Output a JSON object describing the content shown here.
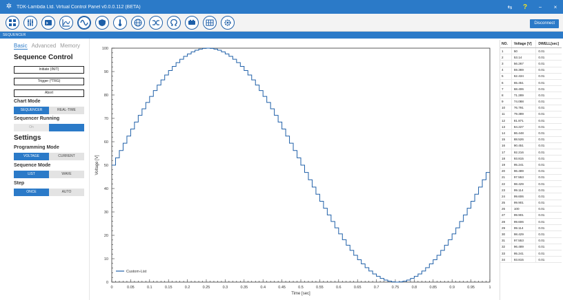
{
  "window": {
    "title": "TDK-Lambda Ltd. Virtual Control Panel v0.0.0.112 (BETA)",
    "controls": [
      "⇆",
      "?",
      "−",
      "×"
    ]
  },
  "toolbar": {
    "icons": [
      "dashboard-icon",
      "equalizer-icon",
      "terminal-icon",
      "chart-icon",
      "sine-wave-icon",
      "shield-icon",
      "thermometer-icon",
      "globe-icon",
      "shuffle-icon",
      "omega-icon",
      "battery-icon",
      "grid-icon",
      "settings-icon"
    ],
    "active_index": 4,
    "disconnect_label": "Disconnect"
  },
  "section": {
    "label": "SEQUENCER"
  },
  "left": {
    "tabs": [
      {
        "label": "Basic",
        "selected": true
      },
      {
        "label": "Advanced"
      },
      {
        "label": "Memory"
      }
    ],
    "sequence_control_title": "Sequence Control",
    "buttons": {
      "initiate": "Initiate (INIT)",
      "trigger": "Trigger (*TRG)",
      "abort": "Abort"
    },
    "chart_mode": {
      "title": "Chart Mode",
      "options": [
        "SEQUENCER",
        "REAL-TIME"
      ],
      "selected": "SEQUENCER"
    },
    "sequencer_running": {
      "title": "Sequencer Running",
      "options": [
        "On",
        "Off"
      ],
      "selected": "Off"
    },
    "settings_title": "Settings",
    "programming_mode": {
      "title": "Programming Mode",
      "options": [
        "VOLTAGE",
        "CURRENT"
      ],
      "selected": "VOLTAGE"
    },
    "sequence_mode": {
      "title": "Sequence Mode",
      "options": [
        "LIST",
        "WAVE"
      ],
      "selected": "LIST"
    },
    "step": {
      "title": "Step",
      "options": [
        "ONCE",
        "AUTO"
      ],
      "selected": "ONCE"
    }
  },
  "colors": {
    "accent": "#2b7ac8",
    "line": "#1e5fa8"
  },
  "chart_data": {
    "type": "line",
    "step": true,
    "xlabel": "Time [sec]",
    "ylabel": "Voltage [V]",
    "xlim": [
      0,
      1
    ],
    "ylim": [
      0,
      100
    ],
    "xticks": [
      "0",
      "0.05",
      "0.1",
      "0.15",
      "0.2",
      "0.25",
      "0.3",
      "0.35",
      "0.4",
      "0.45",
      "0.5",
      "0.55",
      "0.6",
      "0.65",
      "0.7",
      "0.75",
      "0.8",
      "0.85",
      "0.9",
      "0.95",
      "1"
    ],
    "yticks": [
      "0",
      "10",
      "20",
      "30",
      "40",
      "50",
      "60",
      "70",
      "80",
      "90",
      "100"
    ],
    "legend": {
      "position": "bottom-left"
    },
    "series": [
      {
        "name": "Custom-List",
        "x": [
          0,
          0.01,
          0.02,
          0.03,
          0.04,
          0.05,
          0.06,
          0.07,
          0.08,
          0.09,
          0.1,
          0.11,
          0.12,
          0.13,
          0.14,
          0.15,
          0.16,
          0.17,
          0.18,
          0.19,
          0.2,
          0.21,
          0.22,
          0.23,
          0.24,
          0.25,
          0.26,
          0.27,
          0.28,
          0.29,
          0.3,
          0.31,
          0.32,
          0.33,
          0.34,
          0.35,
          0.36,
          0.37,
          0.38,
          0.39,
          0.4,
          0.41,
          0.42,
          0.43,
          0.44,
          0.45,
          0.46,
          0.47,
          0.48,
          0.49,
          0.5,
          0.51,
          0.52,
          0.53,
          0.54,
          0.55,
          0.56,
          0.57,
          0.58,
          0.59,
          0.6,
          0.61,
          0.62,
          0.63,
          0.64,
          0.65,
          0.66,
          0.67,
          0.68,
          0.69,
          0.7,
          0.71,
          0.72,
          0.73,
          0.74,
          0.75,
          0.76,
          0.77,
          0.78,
          0.79,
          0.8,
          0.81,
          0.82,
          0.83,
          0.84,
          0.85,
          0.86,
          0.87,
          0.88,
          0.89,
          0.9,
          0.91,
          0.92,
          0.93,
          0.94,
          0.95,
          0.96,
          0.97,
          0.98,
          0.99
        ],
        "values": [
          50,
          53.14,
          56.267,
          59.369,
          62.434,
          65.451,
          68.406,
          71.289,
          74.088,
          76.791,
          79.389,
          81.871,
          84.227,
          86.448,
          88.526,
          90.451,
          92.216,
          93.815,
          95.241,
          96.489,
          97.553,
          98.429,
          99.114,
          99.606,
          99.901,
          100,
          99.901,
          99.606,
          99.114,
          98.429,
          97.553,
          96.489,
          95.241,
          93.815,
          92.216,
          90.451,
          88.526,
          86.448,
          84.227,
          81.871,
          79.389,
          76.791,
          74.088,
          71.289,
          68.406,
          65.451,
          62.434,
          59.369,
          56.267,
          53.14,
          50,
          46.86,
          43.733,
          40.631,
          37.566,
          34.549,
          31.594,
          28.711,
          25.912,
          23.209,
          20.611,
          18.129,
          15.773,
          13.552,
          11.474,
          9.549,
          7.784,
          6.185,
          4.759,
          3.511,
          2.447,
          1.571,
          0.886,
          0.394,
          0.099,
          0,
          0.099,
          0.394,
          0.886,
          1.571,
          2.447,
          3.511,
          4.759,
          6.185,
          7.784,
          9.549,
          11.474,
          13.552,
          15.773,
          18.129,
          20.611,
          23.209,
          25.912,
          28.711,
          31.594,
          34.549,
          37.566,
          40.631,
          43.733,
          46.86
        ]
      }
    ]
  },
  "table": {
    "headers": [
      "NO.",
      "Voltage [V]",
      "DWELL[sec]"
    ],
    "rows": [
      [
        "1",
        "50",
        "0.01"
      ],
      [
        "2",
        "53.14",
        "0.01"
      ],
      [
        "3",
        "56.267",
        "0.01"
      ],
      [
        "4",
        "59.369",
        "0.01"
      ],
      [
        "5",
        "62.434",
        "0.01"
      ],
      [
        "6",
        "65.451",
        "0.01"
      ],
      [
        "7",
        "68.406",
        "0.01"
      ],
      [
        "8",
        "71.289",
        "0.01"
      ],
      [
        "9",
        "74.088",
        "0.01"
      ],
      [
        "10",
        "76.791",
        "0.01"
      ],
      [
        "11",
        "79.389",
        "0.01"
      ],
      [
        "12",
        "81.871",
        "0.01"
      ],
      [
        "13",
        "84.227",
        "0.01"
      ],
      [
        "14",
        "86.448",
        "0.01"
      ],
      [
        "15",
        "88.526",
        "0.01"
      ],
      [
        "16",
        "90.451",
        "0.01"
      ],
      [
        "17",
        "92.216",
        "0.01"
      ],
      [
        "18",
        "93.815",
        "0.01"
      ],
      [
        "19",
        "95.241",
        "0.01"
      ],
      [
        "20",
        "96.489",
        "0.01"
      ],
      [
        "21",
        "97.553",
        "0.01"
      ],
      [
        "22",
        "98.429",
        "0.01"
      ],
      [
        "23",
        "99.114",
        "0.01"
      ],
      [
        "24",
        "99.606",
        "0.01"
      ],
      [
        "25",
        "99.901",
        "0.01"
      ],
      [
        "26",
        "100",
        "0.01"
      ],
      [
        "27",
        "99.901",
        "0.01"
      ],
      [
        "28",
        "99.606",
        "0.01"
      ],
      [
        "29",
        "99.114",
        "0.01"
      ],
      [
        "30",
        "98.429",
        "0.01"
      ],
      [
        "31",
        "97.553",
        "0.01"
      ],
      [
        "32",
        "96.489",
        "0.01"
      ],
      [
        "33",
        "95.241",
        "0.01"
      ],
      [
        "34",
        "93.815",
        "0.01"
      ]
    ]
  }
}
